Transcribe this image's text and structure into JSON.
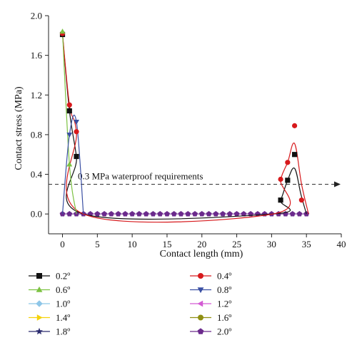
{
  "chart_data": {
    "type": "line",
    "xlabel": "Contact length (mm)",
    "ylabel": "Contact stress (MPa)",
    "xlim": [
      -2,
      40
    ],
    "ylim": [
      -0.2,
      2.0
    ],
    "xticks": [
      0,
      5,
      10,
      15,
      20,
      25,
      30,
      35,
      40
    ],
    "xtick_labels": [
      "0",
      "5",
      "10",
      "15",
      "20",
      "25",
      "30",
      "35",
      "40"
    ],
    "yticks": [
      0.0,
      0.4,
      0.8,
      1.2,
      1.6,
      2.0
    ],
    "ytick_labels": [
      "0.0",
      "0.4",
      "0.8",
      "1.2",
      "1.6",
      "2.0"
    ],
    "grid": false,
    "legend_position": "bottom",
    "threshold": {
      "value": 0.3,
      "label": "0.3 MPa waterproof requirements"
    },
    "zero_points_x": [
      0,
      1,
      2,
      3,
      4,
      5,
      6,
      7,
      8,
      9,
      10,
      11,
      12,
      13,
      14,
      15,
      16,
      17,
      18,
      19,
      20,
      21,
      22,
      23,
      24,
      25,
      26,
      27,
      28,
      29,
      30,
      31,
      32,
      33,
      34,
      35
    ],
    "series": [
      {
        "name": "0.2º",
        "color": "#111111",
        "marker": "square",
        "points": [
          [
            0,
            1.81
          ],
          [
            1,
            1.04
          ],
          [
            2,
            0.58
          ],
          [
            31.3,
            0.14
          ],
          [
            32.3,
            0.34
          ],
          [
            33.3,
            0.6
          ]
        ],
        "curve": [
          [
            0,
            1.81
          ],
          [
            1,
            1.04
          ],
          [
            2,
            0.58
          ],
          [
            3,
            0
          ],
          [
            30.2,
            0
          ],
          [
            31.3,
            0.14
          ],
          [
            32.3,
            0.34
          ],
          [
            33.3,
            0.46
          ],
          [
            34.2,
            0.2
          ],
          [
            35,
            0
          ]
        ]
      },
      {
        "name": "0.4º",
        "color": "#d7191c",
        "marker": "circle",
        "points": [
          [
            0,
            1.82
          ],
          [
            1,
            1.1
          ],
          [
            2,
            0.83
          ],
          [
            31.3,
            0.35
          ],
          [
            32.3,
            0.52
          ],
          [
            33.3,
            0.89
          ],
          [
            34.3,
            0.14
          ]
        ],
        "curve": [
          [
            0,
            1.82
          ],
          [
            1,
            1.1
          ],
          [
            2,
            0.83
          ],
          [
            3,
            0
          ],
          [
            30.2,
            0
          ],
          [
            31.3,
            0.35
          ],
          [
            32.3,
            0.52
          ],
          [
            33.3,
            0.71
          ],
          [
            34.3,
            0.3
          ],
          [
            35.3,
            0
          ]
        ]
      },
      {
        "name": "0.6º",
        "color": "#7cc242",
        "marker": "triangle-up",
        "points": [
          [
            0,
            1.84
          ],
          [
            1,
            0.5
          ]
        ],
        "curve": [
          [
            0,
            1.84
          ],
          [
            1,
            0.5
          ],
          [
            2,
            0
          ]
        ]
      },
      {
        "name": "0.8º",
        "color": "#3a4fa3",
        "marker": "triangle-down",
        "points": [
          [
            1,
            0.8
          ],
          [
            2,
            0.93
          ]
        ],
        "curve": [
          [
            0,
            0
          ],
          [
            1,
            0.8
          ],
          [
            2,
            0.93
          ],
          [
            3,
            0
          ]
        ]
      },
      {
        "name": "1.0º",
        "color": "#8ec6e8",
        "marker": "diamond",
        "points": [],
        "curve": []
      },
      {
        "name": "1.2º",
        "color": "#d35ad3",
        "marker": "triangle-left",
        "points": [],
        "curve": []
      },
      {
        "name": "1.4º",
        "color": "#f5d20a",
        "marker": "triangle-right",
        "points": [],
        "curve": []
      },
      {
        "name": "1.6º",
        "color": "#8f8f12",
        "marker": "circle",
        "points": [],
        "curve": []
      },
      {
        "name": "1.8º",
        "color": "#2a2a6e",
        "marker": "star",
        "points": [],
        "curve": []
      },
      {
        "name": "2.0º",
        "color": "#6b2a8c",
        "marker": "pentagon",
        "points": [],
        "curve": []
      }
    ]
  }
}
